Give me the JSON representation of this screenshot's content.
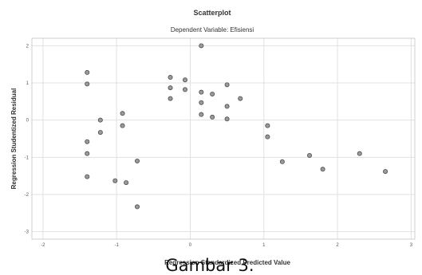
{
  "caption": "Gambar 3.",
  "chart_data": {
    "type": "scatter",
    "title": "Scatterplot",
    "subtitle": "Dependent Variable: Efisiensi",
    "xlabel": "Regression Standardized Predicted Value",
    "ylabel": "Regression Studentized Residual",
    "xlim": [
      -2.15,
      3.05
    ],
    "ylim": [
      -3.2,
      2.2
    ],
    "x_ticks": [
      -2,
      -1,
      0,
      1,
      2,
      3
    ],
    "y_ticks": [
      -3,
      -2,
      -1,
      0,
      1,
      2
    ],
    "x_tick_labels": [
      "-2",
      "-1",
      "0",
      "1",
      "2",
      "3"
    ],
    "y_tick_labels": [
      "-3",
      "-2",
      "-1",
      "0",
      "1",
      "2"
    ],
    "grid": true,
    "points": [
      {
        "x": 0.15,
        "y": 2.0
      },
      {
        "x": -1.4,
        "y": 1.28
      },
      {
        "x": -1.4,
        "y": 0.97
      },
      {
        "x": -1.4,
        "y": -0.58
      },
      {
        "x": -1.4,
        "y": -0.9
      },
      {
        "x": -1.4,
        "y": -1.52
      },
      {
        "x": -1.22,
        "y": 0.0
      },
      {
        "x": -1.22,
        "y": -0.33
      },
      {
        "x": -0.92,
        "y": 0.18
      },
      {
        "x": -0.92,
        "y": -0.15
      },
      {
        "x": -1.02,
        "y": -1.63
      },
      {
        "x": -0.87,
        "y": -1.68
      },
      {
        "x": -0.72,
        "y": -1.1
      },
      {
        "x": -0.72,
        "y": -2.33
      },
      {
        "x": -0.27,
        "y": 1.15
      },
      {
        "x": -0.27,
        "y": 0.87
      },
      {
        "x": -0.27,
        "y": 0.58
      },
      {
        "x": -0.07,
        "y": 1.08
      },
      {
        "x": -0.07,
        "y": 0.82
      },
      {
        "x": 0.15,
        "y": 0.75
      },
      {
        "x": 0.15,
        "y": 0.47
      },
      {
        "x": 0.15,
        "y": 0.15
      },
      {
        "x": 0.3,
        "y": 0.7
      },
      {
        "x": 0.3,
        "y": 0.08
      },
      {
        "x": 0.5,
        "y": 0.95
      },
      {
        "x": 0.5,
        "y": 0.37
      },
      {
        "x": 0.5,
        "y": 0.03
      },
      {
        "x": 0.68,
        "y": 0.58
      },
      {
        "x": 1.05,
        "y": -0.15
      },
      {
        "x": 1.05,
        "y": -0.45
      },
      {
        "x": 1.25,
        "y": -1.12
      },
      {
        "x": 1.62,
        "y": -0.95
      },
      {
        "x": 1.8,
        "y": -1.32
      },
      {
        "x": 2.3,
        "y": -0.9
      },
      {
        "x": 2.65,
        "y": -1.38
      }
    ]
  }
}
